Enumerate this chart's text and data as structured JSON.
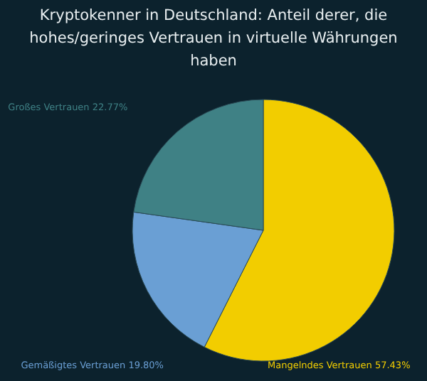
{
  "chart_data": {
    "type": "pie",
    "title": "Kryptokenner in Deutschland: Anteil derer, die hohes/geringes Vertrauen in virtuelle Währungen haben",
    "categories": [
      "Mangelndes Vertrauen",
      "Gemäßigtes Vertrauen",
      "Großes Vertrauen"
    ],
    "values": [
      57.43,
      19.8,
      22.77
    ],
    "value_labels": [
      "57.43%",
      "19.80%",
      "22.77%"
    ],
    "colors": [
      "#f2cd00",
      "#6a9fd4",
      "#3f8185"
    ],
    "legend": false
  }
}
